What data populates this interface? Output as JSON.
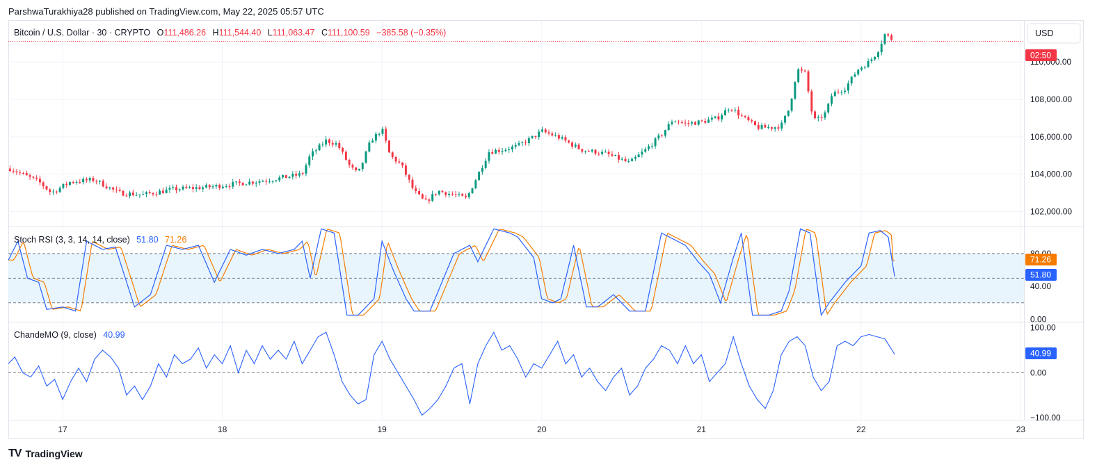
{
  "publisher_line": "ParshwaTurakhiya28 published on TradingView.com, May 22, 2025 05:57 UTC",
  "footer": {
    "brand": "TradingView",
    "logo": "TV"
  },
  "colors": {
    "up": "#089981",
    "down": "#f23645",
    "k_line": "#2962ff",
    "d_line": "#f57c00",
    "cmo_line": "#2962ff",
    "rsi_band": "#e3f2fd"
  },
  "chart_data": [
    {
      "type": "candlestick",
      "name": "price",
      "symbol": "Bitcoin / U.S. Dollar · 30 · CRYPTO",
      "ohlc": {
        "o_label": "O",
        "o": "111,486.26",
        "h_label": "H",
        "h": "111,544.40",
        "l_label": "L",
        "l": "111,063.47",
        "c_label": "C",
        "c": "111,100.59",
        "change": "−385.58 (−0.35%)"
      },
      "currency": "USD",
      "countdown": "02:50",
      "ylim": [
        101200,
        112200
      ],
      "yticks": [
        "110,000.00",
        "108,000.00",
        "106,000.00",
        "104,000.00",
        "102,000.00"
      ],
      "ytick_values": [
        110000,
        108000,
        106000,
        104000,
        102000
      ],
      "current_price": 111100,
      "x_start_day": 16.66,
      "x_end_day": 23.02,
      "candle_interval_days": 0.02083,
      "anchors": [
        [
          16.67,
          104300
        ],
        [
          16.85,
          103600
        ],
        [
          16.93,
          103000
        ],
        [
          17.05,
          103600
        ],
        [
          17.2,
          103700
        ],
        [
          17.35,
          103000
        ],
        [
          17.5,
          102900
        ],
        [
          17.7,
          103200
        ],
        [
          17.9,
          103300
        ],
        [
          18.1,
          103500
        ],
        [
          18.3,
          103700
        ],
        [
          18.5,
          104000
        ],
        [
          18.55,
          105000
        ],
        [
          18.65,
          105800
        ],
        [
          18.72,
          105600
        ],
        [
          18.8,
          104400
        ],
        [
          18.85,
          104000
        ],
        [
          18.93,
          105800
        ],
        [
          19.0,
          106400
        ],
        [
          19.05,
          105000
        ],
        [
          19.12,
          104500
        ],
        [
          19.2,
          103100
        ],
        [
          19.27,
          102500
        ],
        [
          19.35,
          103100
        ],
        [
          19.45,
          102900
        ],
        [
          19.53,
          102700
        ],
        [
          19.58,
          103600
        ],
        [
          19.67,
          105200
        ],
        [
          19.75,
          105300
        ],
        [
          19.85,
          105500
        ],
        [
          19.95,
          106000
        ],
        [
          20.0,
          106300
        ],
        [
          20.1,
          106000
        ],
        [
          20.25,
          105300
        ],
        [
          20.4,
          105100
        ],
        [
          20.55,
          104600
        ],
        [
          20.65,
          105300
        ],
        [
          20.75,
          106100
        ],
        [
          20.82,
          106900
        ],
        [
          20.9,
          106700
        ],
        [
          21.0,
          106800
        ],
        [
          21.1,
          107000
        ],
        [
          21.18,
          107600
        ],
        [
          21.25,
          107100
        ],
        [
          21.35,
          106500
        ],
        [
          21.45,
          106500
        ],
        [
          21.5,
          106600
        ],
        [
          21.55,
          107500
        ],
        [
          21.6,
          109600
        ],
        [
          21.65,
          109400
        ],
        [
          21.7,
          106900
        ],
        [
          21.73,
          106900
        ],
        [
          21.78,
          107300
        ],
        [
          21.82,
          108300
        ],
        [
          21.9,
          108600
        ],
        [
          21.98,
          109600
        ],
        [
          22.05,
          110000
        ],
        [
          22.1,
          110500
        ],
        [
          22.15,
          111500
        ],
        [
          22.21,
          111100
        ]
      ]
    },
    {
      "type": "line",
      "name": "stoch-rsi",
      "label": "Stoch RSI (3, 3, 14, 14, close)",
      "k_value": "51.80",
      "d_value": "71.26",
      "ylim": [
        -3,
        112
      ],
      "yticks": [
        "80.00",
        "40.00",
        "0.00"
      ],
      "ytick_values": [
        80,
        40,
        0
      ],
      "band": [
        20,
        80
      ],
      "midline": 50,
      "anchors": [
        [
          16.66,
          72
        ],
        [
          16.72,
          95
        ],
        [
          16.78,
          50
        ],
        [
          16.85,
          45
        ],
        [
          16.9,
          12
        ],
        [
          17.0,
          15
        ],
        [
          17.08,
          10
        ],
        [
          17.15,
          95
        ],
        [
          17.25,
          85
        ],
        [
          17.33,
          88
        ],
        [
          17.45,
          15
        ],
        [
          17.55,
          30
        ],
        [
          17.65,
          90
        ],
        [
          17.75,
          85
        ],
        [
          17.85,
          90
        ],
        [
          17.95,
          45
        ],
        [
          18.05,
          85
        ],
        [
          18.15,
          78
        ],
        [
          18.25,
          85
        ],
        [
          18.35,
          80
        ],
        [
          18.45,
          85
        ],
        [
          18.5,
          95
        ],
        [
          18.55,
          50
        ],
        [
          18.62,
          110
        ],
        [
          18.7,
          105
        ],
        [
          18.78,
          5
        ],
        [
          18.85,
          5
        ],
        [
          18.95,
          25
        ],
        [
          19.0,
          95
        ],
        [
          19.07,
          60
        ],
        [
          19.15,
          25
        ],
        [
          19.2,
          10
        ],
        [
          19.3,
          10
        ],
        [
          19.45,
          80
        ],
        [
          19.55,
          90
        ],
        [
          19.6,
          70
        ],
        [
          19.7,
          110
        ],
        [
          19.8,
          105
        ],
        [
          19.85,
          100
        ],
        [
          19.95,
          75
        ],
        [
          20.0,
          25
        ],
        [
          20.07,
          20
        ],
        [
          20.12,
          25
        ],
        [
          20.2,
          90
        ],
        [
          20.28,
          15
        ],
        [
          20.35,
          15
        ],
        [
          20.45,
          30
        ],
        [
          20.55,
          10
        ],
        [
          20.65,
          10
        ],
        [
          20.75,
          105
        ],
        [
          20.85,
          95
        ],
        [
          20.9,
          90
        ],
        [
          20.98,
          70
        ],
        [
          21.05,
          55
        ],
        [
          21.12,
          20
        ],
        [
          21.2,
          75
        ],
        [
          21.25,
          105
        ],
        [
          21.32,
          5
        ],
        [
          21.42,
          5
        ],
        [
          21.5,
          10
        ],
        [
          21.55,
          35
        ],
        [
          21.62,
          110
        ],
        [
          21.68,
          105
        ],
        [
          21.75,
          5
        ],
        [
          21.8,
          20
        ],
        [
          21.9,
          45
        ],
        [
          22.0,
          65
        ],
        [
          22.05,
          105
        ],
        [
          22.12,
          108
        ],
        [
          22.17,
          100
        ],
        [
          22.21,
          52
        ]
      ]
    },
    {
      "type": "line",
      "name": "chande-mo",
      "label": "ChandeMO (9, close)",
      "value": "40.99",
      "ylim": [
        -105,
        112
      ],
      "yticks": [
        "100.00",
        "0.00",
        "−100.00"
      ],
      "ytick_values": [
        100,
        0,
        -100
      ],
      "midline": 0,
      "anchors": [
        [
          16.66,
          20
        ],
        [
          16.7,
          35
        ],
        [
          16.75,
          0
        ],
        [
          16.8,
          -10
        ],
        [
          16.85,
          15
        ],
        [
          16.9,
          -30
        ],
        [
          16.95,
          -15
        ],
        [
          17.0,
          -60
        ],
        [
          17.05,
          -20
        ],
        [
          17.1,
          10
        ],
        [
          17.15,
          -20
        ],
        [
          17.2,
          30
        ],
        [
          17.25,
          50
        ],
        [
          17.3,
          35
        ],
        [
          17.35,
          10
        ],
        [
          17.4,
          -50
        ],
        [
          17.45,
          -30
        ],
        [
          17.5,
          -60
        ],
        [
          17.55,
          -30
        ],
        [
          17.6,
          20
        ],
        [
          17.65,
          -10
        ],
        [
          17.7,
          40
        ],
        [
          17.75,
          20
        ],
        [
          17.8,
          30
        ],
        [
          17.85,
          55
        ],
        [
          17.9,
          10
        ],
        [
          17.95,
          40
        ],
        [
          18.0,
          20
        ],
        [
          18.05,
          60
        ],
        [
          18.1,
          0
        ],
        [
          18.15,
          50
        ],
        [
          18.2,
          20
        ],
        [
          18.25,
          60
        ],
        [
          18.3,
          30
        ],
        [
          18.35,
          50
        ],
        [
          18.4,
          30
        ],
        [
          18.45,
          70
        ],
        [
          18.5,
          20
        ],
        [
          18.55,
          50
        ],
        [
          18.6,
          80
        ],
        [
          18.65,
          90
        ],
        [
          18.7,
          40
        ],
        [
          18.75,
          -20
        ],
        [
          18.8,
          -50
        ],
        [
          18.85,
          -70
        ],
        [
          18.9,
          -60
        ],
        [
          18.95,
          40
        ],
        [
          19.0,
          70
        ],
        [
          19.05,
          30
        ],
        [
          19.1,
          0
        ],
        [
          19.15,
          -30
        ],
        [
          19.2,
          -60
        ],
        [
          19.25,
          -95
        ],
        [
          19.3,
          -80
        ],
        [
          19.35,
          -60
        ],
        [
          19.4,
          -30
        ],
        [
          19.45,
          10
        ],
        [
          19.5,
          20
        ],
        [
          19.55,
          -70
        ],
        [
          19.6,
          20
        ],
        [
          19.65,
          60
        ],
        [
          19.7,
          90
        ],
        [
          19.75,
          50
        ],
        [
          19.8,
          60
        ],
        [
          19.85,
          30
        ],
        [
          19.9,
          -10
        ],
        [
          19.95,
          20
        ],
        [
          20.0,
          10
        ],
        [
          20.05,
          40
        ],
        [
          20.1,
          70
        ],
        [
          20.15,
          20
        ],
        [
          20.2,
          40
        ],
        [
          20.25,
          -10
        ],
        [
          20.3,
          10
        ],
        [
          20.35,
          -20
        ],
        [
          20.4,
          -40
        ],
        [
          20.45,
          -10
        ],
        [
          20.5,
          10
        ],
        [
          20.55,
          -50
        ],
        [
          20.6,
          -30
        ],
        [
          20.65,
          10
        ],
        [
          20.7,
          30
        ],
        [
          20.75,
          60
        ],
        [
          20.8,
          50
        ],
        [
          20.85,
          20
        ],
        [
          20.9,
          60
        ],
        [
          20.95,
          20
        ],
        [
          21.0,
          40
        ],
        [
          21.05,
          -20
        ],
        [
          21.1,
          0
        ],
        [
          21.15,
          20
        ],
        [
          21.2,
          80
        ],
        [
          21.25,
          20
        ],
        [
          21.3,
          -30
        ],
        [
          21.35,
          -60
        ],
        [
          21.4,
          -80
        ],
        [
          21.45,
          -40
        ],
        [
          21.5,
          40
        ],
        [
          21.55,
          70
        ],
        [
          21.6,
          80
        ],
        [
          21.65,
          60
        ],
        [
          21.7,
          -10
        ],
        [
          21.75,
          -40
        ],
        [
          21.8,
          -20
        ],
        [
          21.85,
          60
        ],
        [
          21.9,
          70
        ],
        [
          21.95,
          60
        ],
        [
          22.0,
          80
        ],
        [
          22.05,
          85
        ],
        [
          22.1,
          80
        ],
        [
          22.15,
          75
        ],
        [
          22.21,
          41
        ]
      ]
    }
  ],
  "x_axis": {
    "labels": [
      "17",
      "18",
      "19",
      "20",
      "21",
      "22",
      "23"
    ],
    "values": [
      17,
      18,
      19,
      20,
      21,
      22,
      23
    ]
  }
}
